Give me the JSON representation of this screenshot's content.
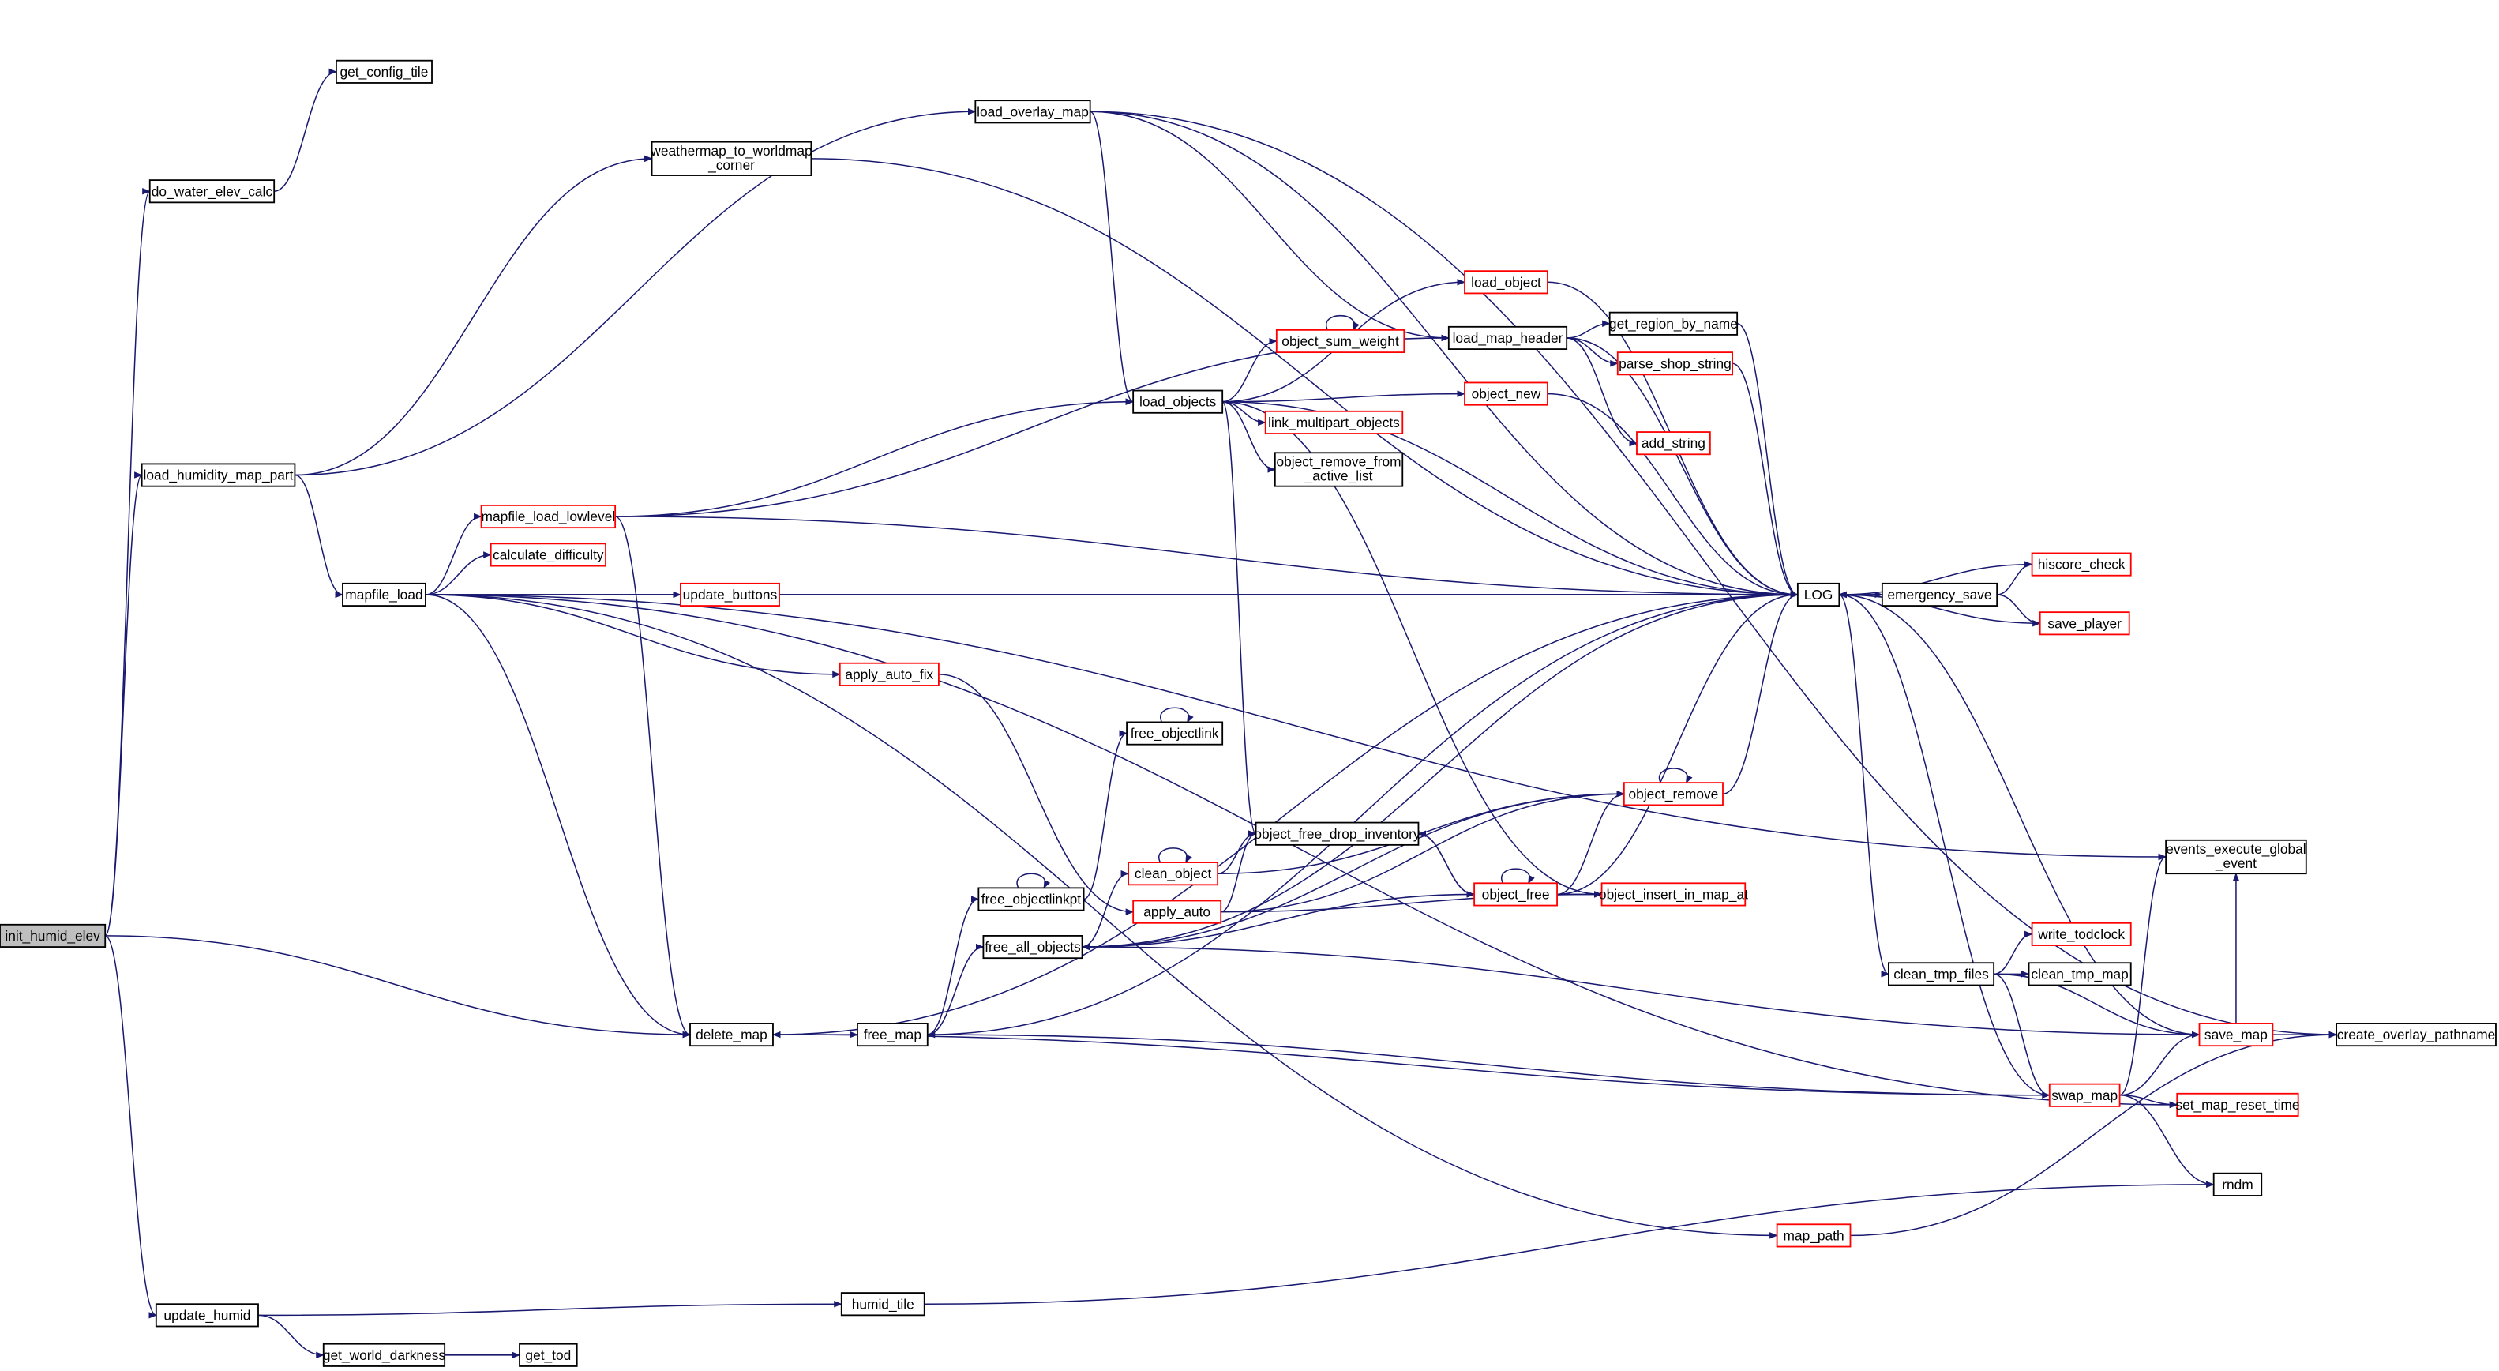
{
  "diagram": {
    "type": "call-graph",
    "edge_color": "#191970",
    "highlight_border_color": "#ff0000",
    "root_fill": "#bfbfbf",
    "nodes": [
      {
        "id": "init_humid_elev",
        "lines": [
          "init_humid_elev"
        ],
        "style": "root"
      },
      {
        "id": "do_water_elev_calc",
        "lines": [
          "do_water_elev_calc"
        ]
      },
      {
        "id": "get_config_tile",
        "lines": [
          "get_config_tile"
        ]
      },
      {
        "id": "load_humidity_map_part",
        "lines": [
          "load_humidity_map_part"
        ]
      },
      {
        "id": "weathermap_to_worldmap_corner",
        "lines": [
          "weathermap_to_worldmap",
          "_corner"
        ]
      },
      {
        "id": "load_overlay_map",
        "lines": [
          "load_overlay_map"
        ]
      },
      {
        "id": "mapfile_load",
        "lines": [
          "mapfile_load"
        ]
      },
      {
        "id": "mapfile_load_lowlevel",
        "lines": [
          "mapfile_load_lowlevel"
        ],
        "style": "red"
      },
      {
        "id": "calculate_difficulty",
        "lines": [
          "calculate_difficulty"
        ],
        "style": "red"
      },
      {
        "id": "update_buttons",
        "lines": [
          "update_buttons"
        ],
        "style": "red"
      },
      {
        "id": "apply_auto_fix",
        "lines": [
          "apply_auto_fix"
        ],
        "style": "red"
      },
      {
        "id": "delete_map",
        "lines": [
          "delete_map"
        ]
      },
      {
        "id": "free_map",
        "lines": [
          "free_map"
        ]
      },
      {
        "id": "free_all_objects",
        "lines": [
          "free_all_objects"
        ]
      },
      {
        "id": "free_objectlinkpt",
        "lines": [
          "free_objectlinkpt"
        ]
      },
      {
        "id": "free_objectlink",
        "lines": [
          "free_objectlink"
        ]
      },
      {
        "id": "clean_object",
        "lines": [
          "clean_object"
        ],
        "style": "red"
      },
      {
        "id": "apply_auto",
        "lines": [
          "apply_auto"
        ],
        "style": "red"
      },
      {
        "id": "object_free_drop_inventory",
        "lines": [
          "object_free_drop_inventory"
        ]
      },
      {
        "id": "object_free",
        "lines": [
          "object_free"
        ],
        "style": "red"
      },
      {
        "id": "object_insert_in_map_at",
        "lines": [
          "object_insert_in_map_at"
        ],
        "style": "red"
      },
      {
        "id": "object_remove",
        "lines": [
          "object_remove"
        ],
        "style": "red"
      },
      {
        "id": "load_objects",
        "lines": [
          "load_objects"
        ]
      },
      {
        "id": "object_sum_weight",
        "lines": [
          "object_sum_weight"
        ],
        "style": "red"
      },
      {
        "id": "link_multipart_objects",
        "lines": [
          "link_multipart_objects"
        ],
        "style": "red"
      },
      {
        "id": "object_remove_from_active_list",
        "lines": [
          "object_remove_from",
          "_active_list"
        ]
      },
      {
        "id": "object_new",
        "lines": [
          "object_new"
        ],
        "style": "red"
      },
      {
        "id": "load_object",
        "lines": [
          "load_object"
        ],
        "style": "red"
      },
      {
        "id": "load_map_header",
        "lines": [
          "load_map_header"
        ]
      },
      {
        "id": "get_region_by_name",
        "lines": [
          "get_region_by_name"
        ]
      },
      {
        "id": "parse_shop_string",
        "lines": [
          "parse_shop_string"
        ],
        "style": "red"
      },
      {
        "id": "add_string",
        "lines": [
          "add_string"
        ],
        "style": "red"
      },
      {
        "id": "LOG",
        "lines": [
          "LOG"
        ]
      },
      {
        "id": "emergency_save",
        "lines": [
          "emergency_save"
        ]
      },
      {
        "id": "hiscore_check",
        "lines": [
          "hiscore_check"
        ],
        "style": "red"
      },
      {
        "id": "save_player",
        "lines": [
          "save_player"
        ],
        "style": "red"
      },
      {
        "id": "events_execute_global_event",
        "lines": [
          "events_execute_global",
          "_event"
        ]
      },
      {
        "id": "clean_tmp_files",
        "lines": [
          "clean_tmp_files"
        ]
      },
      {
        "id": "write_todclock",
        "lines": [
          "write_todclock"
        ],
        "style": "red"
      },
      {
        "id": "clean_tmp_map",
        "lines": [
          "clean_tmp_map"
        ]
      },
      {
        "id": "save_map",
        "lines": [
          "save_map"
        ],
        "style": "red"
      },
      {
        "id": "create_overlay_pathname",
        "lines": [
          "create_overlay_pathname"
        ]
      },
      {
        "id": "swap_map",
        "lines": [
          "swap_map"
        ],
        "style": "red"
      },
      {
        "id": "set_map_reset_time",
        "lines": [
          "set_map_reset_time"
        ],
        "style": "red"
      },
      {
        "id": "rndm",
        "lines": [
          "rndm"
        ]
      },
      {
        "id": "map_path",
        "lines": [
          "map_path"
        ],
        "style": "red"
      },
      {
        "id": "update_humid",
        "lines": [
          "update_humid"
        ]
      },
      {
        "id": "humid_tile",
        "lines": [
          "humid_tile"
        ]
      },
      {
        "id": "get_world_darkness",
        "lines": [
          "get_world_darkness"
        ]
      },
      {
        "id": "get_tod",
        "lines": [
          "get_tod"
        ]
      }
    ],
    "edges": [
      [
        "init_humid_elev",
        "do_water_elev_calc"
      ],
      [
        "init_humid_elev",
        "load_humidity_map_part"
      ],
      [
        "init_humid_elev",
        "delete_map"
      ],
      [
        "init_humid_elev",
        "update_humid"
      ],
      [
        "do_water_elev_calc",
        "get_config_tile"
      ],
      [
        "load_humidity_map_part",
        "load_overlay_map"
      ],
      [
        "load_humidity_map_part",
        "weathermap_to_worldmap_corner"
      ],
      [
        "load_humidity_map_part",
        "mapfile_load"
      ],
      [
        "load_overlay_map",
        "LOG"
      ],
      [
        "load_overlay_map",
        "create_overlay_pathname"
      ],
      [
        "load_overlay_map",
        "load_map_header"
      ],
      [
        "load_overlay_map",
        "load_objects"
      ],
      [
        "weathermap_to_worldmap_corner",
        "LOG"
      ],
      [
        "mapfile_load",
        "events_execute_global_event"
      ],
      [
        "mapfile_load",
        "mapfile_load_lowlevel"
      ],
      [
        "mapfile_load",
        "calculate_difficulty"
      ],
      [
        "mapfile_load",
        "update_buttons"
      ],
      [
        "mapfile_load",
        "LOG"
      ],
      [
        "mapfile_load",
        "apply_auto_fix"
      ],
      [
        "mapfile_load",
        "set_map_reset_time"
      ],
      [
        "mapfile_load",
        "map_path"
      ],
      [
        "mapfile_load",
        "delete_map"
      ],
      [
        "mapfile_load_lowlevel",
        "load_map_header"
      ],
      [
        "mapfile_load_lowlevel",
        "load_objects"
      ],
      [
        "mapfile_load_lowlevel",
        "LOG"
      ],
      [
        "mapfile_load_lowlevel",
        "delete_map"
      ],
      [
        "update_buttons",
        "LOG"
      ],
      [
        "apply_auto_fix",
        "apply_auto"
      ],
      [
        "load_objects",
        "LOG"
      ],
      [
        "load_objects",
        "load_object"
      ],
      [
        "load_objects",
        "object_sum_weight"
      ],
      [
        "load_objects",
        "object_new"
      ],
      [
        "load_objects",
        "link_multipart_objects"
      ],
      [
        "load_objects",
        "object_remove_from_active_list"
      ],
      [
        "load_objects",
        "object_free_drop_inventory"
      ],
      [
        "load_objects",
        "object_insert_in_map_at"
      ],
      [
        "object_sum_weight",
        "object_sum_weight"
      ],
      [
        "load_object",
        "LOG"
      ],
      [
        "load_map_header",
        "get_region_by_name"
      ],
      [
        "load_map_header",
        "parse_shop_string"
      ],
      [
        "load_map_header",
        "add_string"
      ],
      [
        "load_map_header",
        "LOG"
      ],
      [
        "get_region_by_name",
        "LOG"
      ],
      [
        "parse_shop_string",
        "LOG"
      ],
      [
        "object_new",
        "LOG"
      ],
      [
        "delete_map",
        "LOG"
      ],
      [
        "delete_map",
        "free_map"
      ],
      [
        "free_map",
        "free_objectlinkpt"
      ],
      [
        "free_map",
        "free_all_objects"
      ],
      [
        "free_map",
        "LOG"
      ],
      [
        "free_objectlinkpt",
        "free_objectlinkpt"
      ],
      [
        "free_objectlinkpt",
        "free_objectlink"
      ],
      [
        "free_objectlink",
        "free_objectlink"
      ],
      [
        "free_all_objects",
        "clean_object"
      ],
      [
        "free_all_objects",
        "object_remove"
      ],
      [
        "free_all_objects",
        "LOG"
      ],
      [
        "free_all_objects",
        "object_free"
      ],
      [
        "clean_object",
        "clean_object"
      ],
      [
        "clean_object",
        "object_free_drop_inventory"
      ],
      [
        "clean_object",
        "object_remove"
      ],
      [
        "apply_auto",
        "object_free_drop_inventory"
      ],
      [
        "apply_auto",
        "object_remove"
      ],
      [
        "apply_auto",
        "object_insert_in_map_at"
      ],
      [
        "object_free_drop_inventory",
        "object_free"
      ],
      [
        "object_free",
        "object_free"
      ],
      [
        "object_free",
        "object_free_drop_inventory"
      ],
      [
        "object_free",
        "object_remove"
      ],
      [
        "object_free",
        "object_insert_in_map_at"
      ],
      [
        "object_free",
        "LOG"
      ],
      [
        "object_remove",
        "object_remove"
      ],
      [
        "object_remove",
        "LOG"
      ],
      [
        "LOG",
        "emergency_save"
      ],
      [
        "LOG",
        "clean_tmp_files"
      ],
      [
        "emergency_save",
        "hiscore_check"
      ],
      [
        "emergency_save",
        "save_player"
      ],
      [
        "emergency_save",
        "LOG"
      ],
      [
        "hiscore_check",
        "LOG"
      ],
      [
        "save_player",
        "LOG"
      ],
      [
        "clean_tmp_files",
        "write_todclock"
      ],
      [
        "clean_tmp_files",
        "clean_tmp_map"
      ],
      [
        "clean_tmp_files",
        "save_map"
      ],
      [
        "clean_tmp_files",
        "swap_map"
      ],
      [
        "save_map",
        "free_all_objects"
      ],
      [
        "save_map",
        "LOG"
      ],
      [
        "save_map",
        "create_overlay_pathname"
      ],
      [
        "save_map",
        "events_execute_global_event"
      ],
      [
        "swap_map",
        "events_execute_global_event"
      ],
      [
        "swap_map",
        "save_map"
      ],
      [
        "swap_map",
        "set_map_reset_time"
      ],
      [
        "swap_map",
        "rndm"
      ],
      [
        "swap_map",
        "LOG"
      ],
      [
        "swap_map",
        "free_map"
      ],
      [
        "swap_map",
        "delete_map"
      ],
      [
        "map_path",
        "create_overlay_pathname"
      ],
      [
        "update_humid",
        "humid_tile"
      ],
      [
        "update_humid",
        "get_world_darkness"
      ],
      [
        "humid_tile",
        "rndm"
      ],
      [
        "get_world_darkness",
        "get_tod"
      ]
    ]
  }
}
